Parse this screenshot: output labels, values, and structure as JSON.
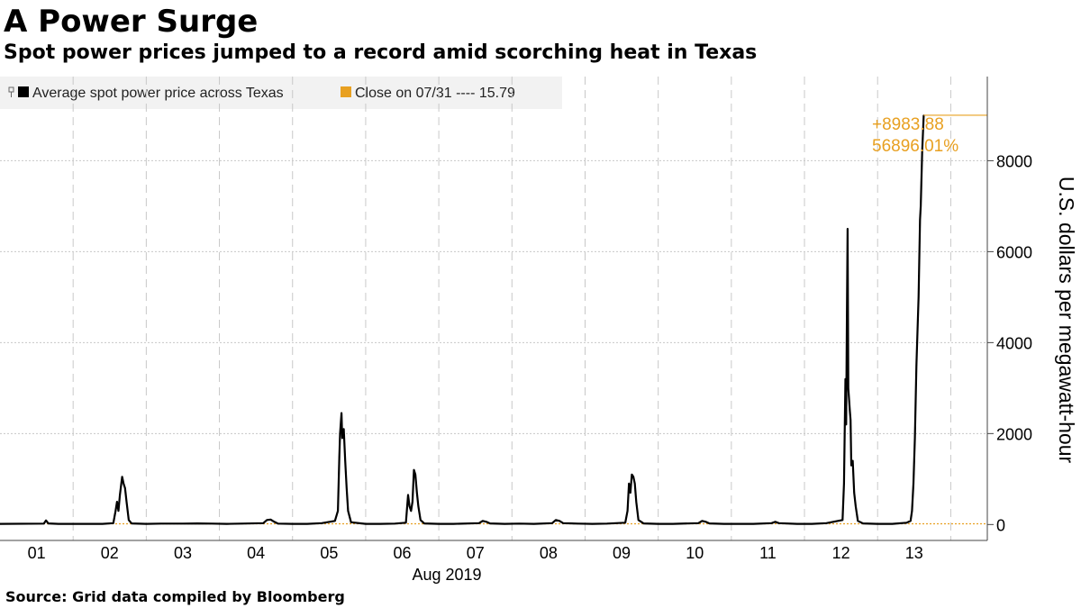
{
  "title": "A Power Surge",
  "subtitle": "Spot power prices jumped to a record amid scorching heat in Texas",
  "source": "Source: Grid data compiled by Bloomberg",
  "colors": {
    "series": "#000000",
    "accent": "#e8a021",
    "grid": "#c8c8c8",
    "legend_bg": "#f2f2f2"
  },
  "legend": {
    "series_label": "Average spot power price across Texas",
    "close_label": "Close on 07/31 ---- 15.79"
  },
  "annotation": {
    "change": "+8983.88",
    "change_pct": "56896.01%"
  },
  "chart_data": {
    "type": "line",
    "title": "A Power Surge",
    "subtitle": "Spot power prices jumped to a record amid scorching heat in Texas",
    "xlabel": "Aug 2019",
    "ylabel": "U.S. dollars per megawatt-hour",
    "x_ticks": [
      "01",
      "02",
      "03",
      "04",
      "05",
      "06",
      "07",
      "08",
      "09",
      "10",
      "11",
      "12",
      "13"
    ],
    "x_range_days": [
      0.5,
      14.0
    ],
    "ylim": [
      -350,
      9850
    ],
    "y_ticks": [
      0,
      2000,
      4000,
      6000,
      8000
    ],
    "y_tick_labels": [
      "0",
      "2000",
      "4000",
      "6000",
      "8000"
    ],
    "grid": true,
    "legend_position": "top-left",
    "reference_line": {
      "label": "Close on 07/31",
      "value": 15.79
    },
    "series": [
      {
        "name": "Average spot power price across Texas",
        "points": [
          [
            0.5,
            15
          ],
          [
            1.1,
            20
          ],
          [
            1.13,
            90
          ],
          [
            1.16,
            25
          ],
          [
            1.3,
            15
          ],
          [
            1.5,
            15
          ],
          [
            1.7,
            15
          ],
          [
            1.9,
            15
          ],
          [
            2.05,
            30
          ],
          [
            2.08,
            300
          ],
          [
            2.1,
            500
          ],
          [
            2.12,
            300
          ],
          [
            2.14,
            650
          ],
          [
            2.17,
            1050
          ],
          [
            2.19,
            900
          ],
          [
            2.21,
            800
          ],
          [
            2.23,
            500
          ],
          [
            2.26,
            100
          ],
          [
            2.3,
            25
          ],
          [
            2.5,
            15
          ],
          [
            2.7,
            20
          ],
          [
            3.0,
            20
          ],
          [
            3.2,
            25
          ],
          [
            3.4,
            20
          ],
          [
            3.6,
            15
          ],
          [
            3.8,
            20
          ],
          [
            4.1,
            30
          ],
          [
            4.15,
            100
          ],
          [
            4.2,
            110
          ],
          [
            4.25,
            60
          ],
          [
            4.3,
            20
          ],
          [
            4.5,
            15
          ],
          [
            4.7,
            15
          ],
          [
            4.9,
            30
          ],
          [
            5.08,
            80
          ],
          [
            5.12,
            300
          ],
          [
            5.14,
            1500
          ],
          [
            5.15,
            2000
          ],
          [
            5.17,
            2450
          ],
          [
            5.18,
            1900
          ],
          [
            5.2,
            2100
          ],
          [
            5.22,
            1400
          ],
          [
            5.24,
            800
          ],
          [
            5.26,
            300
          ],
          [
            5.3,
            50
          ],
          [
            5.5,
            15
          ],
          [
            5.7,
            15
          ],
          [
            5.9,
            20
          ],
          [
            6.05,
            40
          ],
          [
            6.08,
            650
          ],
          [
            6.1,
            400
          ],
          [
            6.12,
            300
          ],
          [
            6.14,
            500
          ],
          [
            6.16,
            1200
          ],
          [
            6.18,
            1100
          ],
          [
            6.2,
            700
          ],
          [
            6.22,
            400
          ],
          [
            6.25,
            100
          ],
          [
            6.3,
            25
          ],
          [
            6.5,
            15
          ],
          [
            6.7,
            15
          ],
          [
            7.05,
            30
          ],
          [
            7.1,
            80
          ],
          [
            7.15,
            60
          ],
          [
            7.2,
            25
          ],
          [
            7.4,
            15
          ],
          [
            7.6,
            20
          ],
          [
            7.8,
            15
          ],
          [
            8.05,
            30
          ],
          [
            8.1,
            100
          ],
          [
            8.15,
            80
          ],
          [
            8.2,
            30
          ],
          [
            8.4,
            20
          ],
          [
            8.6,
            15
          ],
          [
            8.8,
            20
          ],
          [
            9.05,
            40
          ],
          [
            9.08,
            300
          ],
          [
            9.1,
            900
          ],
          [
            9.12,
            700
          ],
          [
            9.14,
            1100
          ],
          [
            9.16,
            1050
          ],
          [
            9.18,
            900
          ],
          [
            9.2,
            500
          ],
          [
            9.23,
            100
          ],
          [
            9.3,
            25
          ],
          [
            9.5,
            15
          ],
          [
            9.7,
            15
          ],
          [
            10.05,
            30
          ],
          [
            10.1,
            80
          ],
          [
            10.15,
            60
          ],
          [
            10.2,
            25
          ],
          [
            10.4,
            15
          ],
          [
            10.6,
            15
          ],
          [
            10.8,
            15
          ],
          [
            11.05,
            30
          ],
          [
            11.1,
            60
          ],
          [
            11.15,
            30
          ],
          [
            11.4,
            15
          ],
          [
            11.6,
            15
          ],
          [
            11.8,
            30
          ],
          [
            12.02,
            100
          ],
          [
            12.04,
            900
          ],
          [
            12.06,
            3200
          ],
          [
            12.07,
            2200
          ],
          [
            12.08,
            4500
          ],
          [
            12.09,
            6500
          ],
          [
            12.1,
            3000
          ],
          [
            12.12,
            2500
          ],
          [
            12.13,
            2300
          ],
          [
            12.14,
            1300
          ],
          [
            12.16,
            1400
          ],
          [
            12.18,
            700
          ],
          [
            12.2,
            400
          ],
          [
            12.23,
            80
          ],
          [
            12.3,
            25
          ],
          [
            12.5,
            15
          ],
          [
            12.7,
            15
          ],
          [
            12.9,
            40
          ],
          [
            12.95,
            80
          ],
          [
            12.97,
            300
          ],
          [
            12.99,
            900
          ],
          [
            13.01,
            1900
          ],
          [
            13.03,
            3500
          ],
          [
            13.06,
            5000
          ],
          [
            13.08,
            6700
          ],
          [
            13.09,
            7000
          ],
          [
            13.11,
            8200
          ],
          [
            13.13,
            9000
          ]
        ]
      }
    ]
  }
}
